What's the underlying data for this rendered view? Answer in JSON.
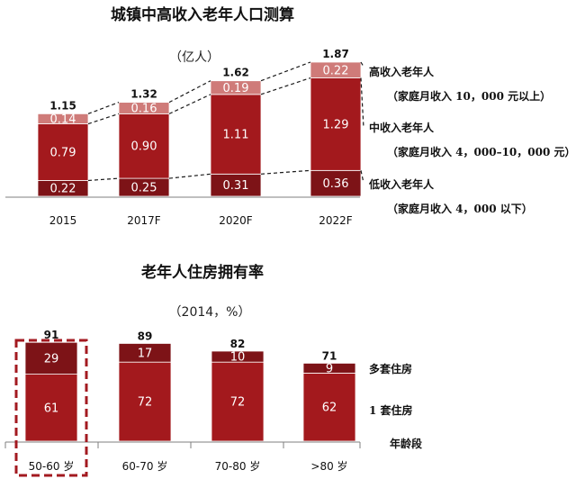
{
  "colors": {
    "dark": "#7d1317",
    "mid": "#a3191d",
    "light": "#cf7b79",
    "dash": "#a31a20",
    "axis": "#7f7f7f"
  },
  "chart_data": [
    {
      "type": "bar",
      "stacked": true,
      "title": "城镇中高收入老年人口测算",
      "subtitle": "（亿人）",
      "categories": [
        "2015",
        "2017F",
        "2020F",
        "2022F"
      ],
      "series": [
        {
          "name": "低收入老年人",
          "note": "（家庭月收入 4，000 以下）",
          "values": [
            0.22,
            0.25,
            0.31,
            0.36
          ]
        },
        {
          "name": "中收入老年人",
          "note": "（家庭月收入 4，000–10，000 元）",
          "values": [
            0.79,
            0.9,
            1.11,
            1.29
          ]
        },
        {
          "name": "高收入老年人",
          "note": "（家庭月收入 10，000 元以上）",
          "values": [
            0.14,
            0.16,
            0.19,
            0.22
          ]
        }
      ],
      "totals": [
        1.15,
        1.32,
        1.62,
        1.87
      ],
      "ylim": [
        0,
        1.87
      ]
    },
    {
      "type": "bar",
      "stacked": true,
      "title": "老年人住房拥有率",
      "subtitle": "（2014，%）",
      "categories": [
        "50-60 岁",
        "60-70 岁",
        "70-80 岁",
        ">80 岁"
      ],
      "axis_label": "年龄段",
      "highlight_index": 0,
      "series": [
        {
          "name": "1 套住房",
          "values": [
            61,
            72,
            72,
            62
          ]
        },
        {
          "name": "多套住房",
          "values": [
            29,
            17,
            10,
            9
          ]
        }
      ],
      "totals": [
        91,
        89,
        82,
        71
      ],
      "ylim": [
        0,
        91
      ]
    }
  ]
}
